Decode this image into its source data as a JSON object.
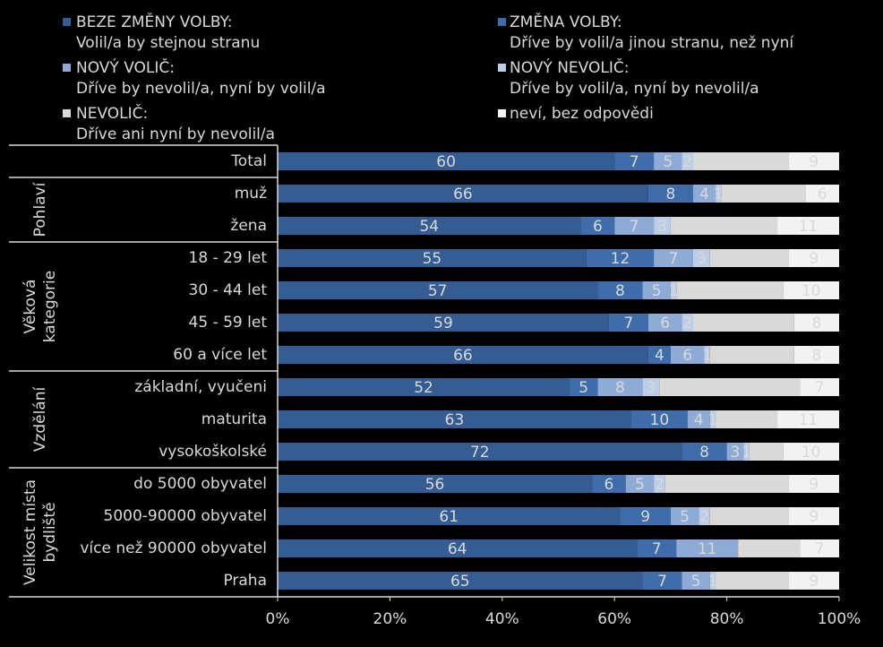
{
  "chart_data": {
    "type": "stacked-bar-horizontal",
    "groups": [
      {
        "label": null,
        "categories": [
          "Total"
        ]
      },
      {
        "label": [
          "Pohlaví"
        ],
        "categories": [
          "muž",
          "žena"
        ]
      },
      {
        "label": [
          "Věková",
          "kategorie"
        ],
        "categories": [
          "18 - 29 let",
          "30 - 44 let",
          "45 - 59 let",
          "60 a více let"
        ]
      },
      {
        "label": [
          "Vzdělání"
        ],
        "categories": [
          "základní, vyučeni",
          "maturita",
          "vysokoškolské"
        ]
      },
      {
        "label": [
          "Velikost místa",
          "bydliště"
        ],
        "categories": [
          "do 5000 obyvatel",
          "5000-90000 obyvatel",
          "více než 90000 obyvatel",
          "Praha"
        ]
      }
    ],
    "series": [
      {
        "name": "BEZE ZMĚNY VOLBY:",
        "description": "Volil/a by stejnou stranu",
        "color": "#355d94",
        "label_color": "#ffffff",
        "values": [
          60,
          66,
          54,
          55,
          57,
          59,
          66,
          52,
          63,
          72,
          56,
          61,
          64,
          65
        ]
      },
      {
        "name": "ZMĚNA VOLBY:",
        "description": "Dříve by volil/a jinou stranu, než nyní",
        "color": "#3f6cab",
        "label_color": "#ffffff",
        "values": [
          7,
          8,
          6,
          12,
          8,
          7,
          4,
          5,
          10,
          8,
          6,
          9,
          7,
          7
        ]
      },
      {
        "name": "NOVÝ VOLIČ:",
        "description": "Dříve by nevolil/a, nyní by volil/a",
        "color": "#8eaad6",
        "label_color": "#7f7f7f",
        "values": [
          5,
          4,
          7,
          7,
          5,
          6,
          6,
          8,
          4,
          3,
          5,
          5,
          11,
          5
        ]
      },
      {
        "name": "NOVÝ NEVOLIČ:",
        "description": "Dříve by volil/a, nyní by nevolil/a",
        "color": "#bccde8",
        "label_color": "#7f7f7f",
        "values": [
          2,
          1,
          3,
          3,
          1,
          2,
          1,
          3,
          1,
          1,
          2,
          2,
          0,
          1
        ]
      },
      {
        "name": "NEVOLIČ:",
        "description": "Dříve ani nyní by nevolil/a",
        "color": "#d9d9d9",
        "label_color": "#7f7f7f",
        "values": [
          17,
          15,
          19,
          14,
          19,
          18,
          15,
          25,
          11,
          6,
          22,
          14,
          11,
          13
        ]
      },
      {
        "name": "neví, bez odpovědi",
        "description": null,
        "color": "#f2f2f2",
        "label_color": "#595959",
        "values": [
          9,
          6,
          11,
          9,
          10,
          8,
          8,
          7,
          11,
          10,
          9,
          9,
          7,
          9
        ]
      }
    ],
    "xlim": [
      0,
      100
    ],
    "xticks": [
      {
        "value": 0,
        "label": "0%"
      },
      {
        "value": 20,
        "label": "20%"
      },
      {
        "value": 40,
        "label": "40%"
      },
      {
        "value": 60,
        "label": "60%"
      },
      {
        "value": 80,
        "label": "80%"
      },
      {
        "value": 100,
        "label": "100%"
      }
    ]
  }
}
